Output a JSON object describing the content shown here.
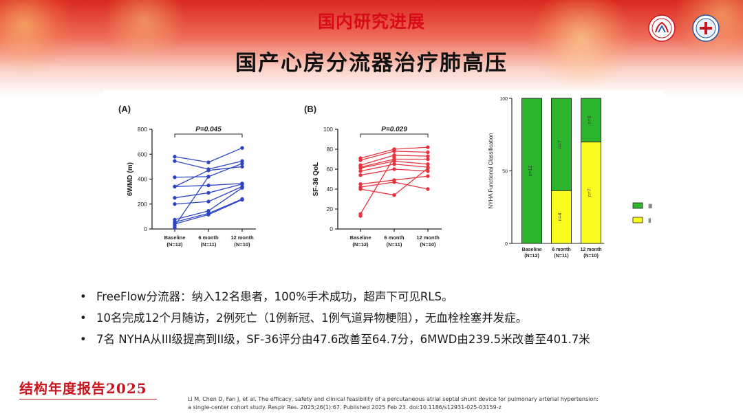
{
  "header": {
    "section_title": "国内研究进展",
    "main_title": "国产心房分流器治疗肺高压"
  },
  "logos": [
    {
      "icon": "institution-seal-icon",
      "color": "#c8141c"
    },
    {
      "icon": "hospital-seal-icon",
      "color": "#1f57a8"
    }
  ],
  "chart_data": [
    {
      "type": "scatter",
      "panel_label": "(A)",
      "ylabel": "6WMD (m)",
      "ylim": [
        0,
        800
      ],
      "yticks": [
        0,
        200,
        400,
        600,
        800
      ],
      "categories": [
        {
          "name": "Baseline",
          "n": "(N=12)"
        },
        {
          "name": "6 month",
          "n": "(N=11)"
        },
        {
          "name": "12 month",
          "n": "(N=10)"
        }
      ],
      "annotation": "P=0.045",
      "color": "#2d45c5",
      "series": [
        {
          "values": [
            580,
            535,
            650
          ]
        },
        {
          "values": [
            545,
            480,
            545
          ]
        },
        {
          "values": [
            415,
            420,
            525
          ]
        },
        {
          "values": [
            340,
            470,
            500
          ]
        },
        {
          "values": [
            340,
            350,
            365
          ]
        },
        {
          "values": [
            250,
            290,
            360
          ]
        },
        {
          "values": [
            200,
            220,
            340
          ]
        },
        {
          "values": [
            75,
            145,
            330
          ]
        },
        {
          "values": [
            55,
            125,
            240
          ]
        },
        {
          "values": [
            40,
            115,
            235
          ]
        },
        {
          "values": [
            25,
            420,
            null
          ]
        },
        {
          "values": [
            10,
            null,
            null
          ]
        }
      ]
    },
    {
      "type": "scatter",
      "panel_label": "(B)",
      "ylabel": "SF-36 QoL",
      "ylim": [
        0,
        100
      ],
      "yticks": [
        0,
        20,
        40,
        60,
        80,
        100
      ],
      "categories": [
        {
          "name": "Baseline",
          "n": "(N=12)"
        },
        {
          "name": "6 month",
          "n": "(N=11)"
        },
        {
          "name": "12 month",
          "n": "(N=10)"
        }
      ],
      "annotation": "P=0.029",
      "color": "#e8333d",
      "series": [
        {
          "values": [
            71,
            80,
            82
          ]
        },
        {
          "values": [
            69,
            78,
            77
          ]
        },
        {
          "values": [
            64,
            74,
            73
          ]
        },
        {
          "values": [
            62,
            70,
            70
          ]
        },
        {
          "values": [
            61,
            68,
            65
          ]
        },
        {
          "values": [
            58,
            65,
            62
          ]
        },
        {
          "values": [
            54,
            60,
            58
          ]
        },
        {
          "values": [
            45,
            49,
            53
          ]
        },
        {
          "values": [
            42,
            47,
            40
          ]
        },
        {
          "values": [
            40,
            34,
            61
          ]
        },
        {
          "values": [
            15,
            72,
            null
          ]
        },
        {
          "values": [
            13,
            null,
            null
          ]
        }
      ]
    },
    {
      "type": "bar",
      "stacked": true,
      "ylabel": "NYHA Functional Classification",
      "ylim": [
        0,
        100
      ],
      "yticks": [
        0,
        50,
        100
      ],
      "categories": [
        {
          "name": "Baseline",
          "n": "(N=12)"
        },
        {
          "name": "6 month",
          "n": "(N=11)"
        },
        {
          "name": "12 month",
          "n": "(N=10)"
        }
      ],
      "series": [
        {
          "name": "Ⅱ",
          "color": "#fafa1e",
          "values": [
            0,
            36.4,
            70
          ],
          "labels": [
            "",
            "n=4",
            "n=7"
          ]
        },
        {
          "name": "Ⅲ",
          "color": "#2cb52c",
          "values": [
            100,
            63.6,
            30
          ],
          "labels": [
            "n=12",
            "n=7",
            "n=3"
          ]
        }
      ],
      "legend": [
        {
          "name": "Ⅲ",
          "color": "#2cb52c"
        },
        {
          "name": "Ⅱ",
          "color": "#fafa1e"
        }
      ],
      "legend_position": "right"
    }
  ],
  "bullets": [
    "FreeFlow分流器：纳入12名患者，100%手术成功，超声下可见RLS。",
    "10名完成12个月随访，2例死亡（1例新冠、1例气道异物梗阻），无血栓栓塞并发症。",
    "7名 NYHA从III级提高到II级，SF-36评分由47.6改善至64.7分，6MWD由239.5米改善至401.7米"
  ],
  "footer": {
    "report_title": "结构年度报告2025",
    "reference_line1": "Li M, Chen D, Fan J, et al. The efficacy, safety and clinical feasibility of a percutaneous atrial septal shunt device for pulmonary arterial hypertension:",
    "reference_line2": "a single-center cohort study. Respir Res. 2025;26(1):67. Published 2025 Feb 23. doi:10.1186/s12931-025-03159-z"
  }
}
